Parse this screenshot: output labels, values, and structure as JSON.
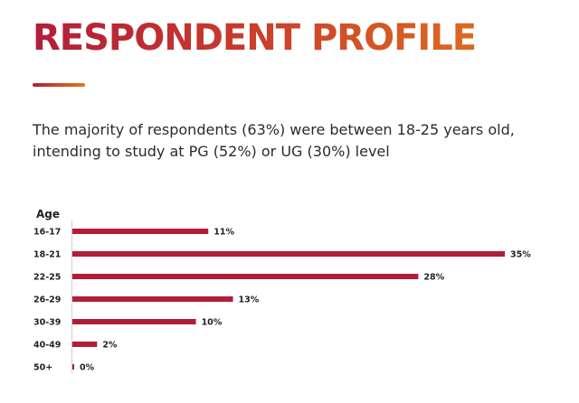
{
  "header": {
    "title": "RESPONDENT PROFILE",
    "subtitle": "The majority of respondents (63%) were between 18-25 years old, intending to study at PG (52%) or UG (30%) level"
  },
  "colors": {
    "bar": "#b01e3a",
    "title_start": "#b01e3a",
    "title_end": "#dd6a1f"
  },
  "chart_data": {
    "type": "bar",
    "orientation": "horizontal",
    "title": "",
    "ylabel": "Age",
    "xlabel": "",
    "categories": [
      "16-17",
      "18-21",
      "22-25",
      "26-29",
      "30-39",
      "40-49",
      "50+"
    ],
    "values": [
      11,
      35,
      28,
      13,
      10,
      2,
      0
    ],
    "value_labels": [
      "11%",
      "35%",
      "28%",
      "13%",
      "10%",
      "2%",
      "0%"
    ],
    "unit": "%",
    "xlim": [
      0,
      35
    ],
    "grid": false,
    "legend": "none"
  }
}
